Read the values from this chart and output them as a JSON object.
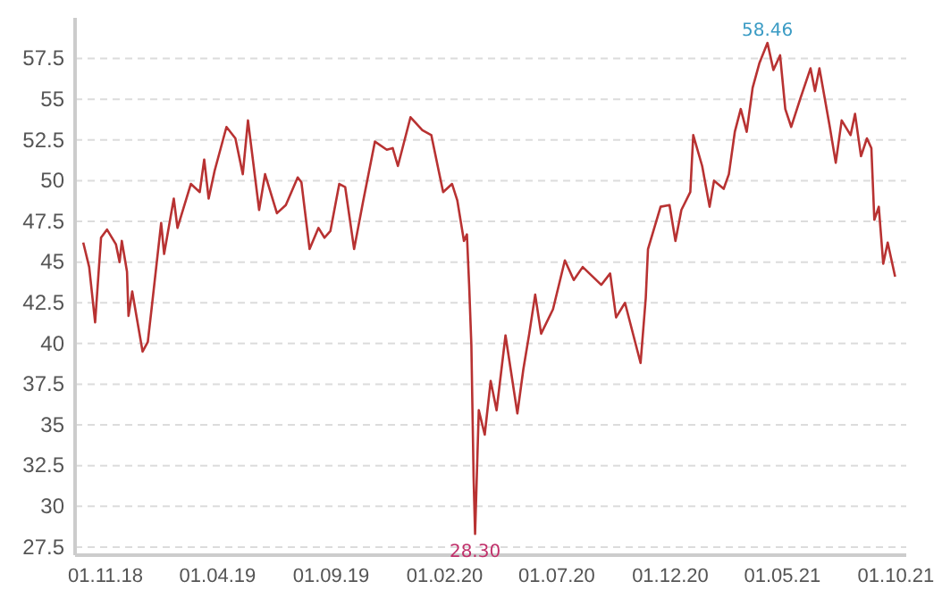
{
  "chart_data": {
    "type": "line",
    "grid": "y",
    "marker": "none",
    "line_style": "solid",
    "xlim": [
      "2018-09-21",
      "2021-10-15"
    ],
    "xticks": [
      {
        "value": "2018-11-01",
        "label": "01.11.18"
      },
      {
        "value": "2019-04-01",
        "label": "01.04.19"
      },
      {
        "value": "2019-09-01",
        "label": "01.09.19"
      },
      {
        "value": "2020-02-01",
        "label": "01.02.20"
      },
      {
        "value": "2020-07-01",
        "label": "01.07.20"
      },
      {
        "value": "2020-12-01",
        "label": "01.12.20"
      },
      {
        "value": "2021-05-01",
        "label": "01.05.21"
      },
      {
        "value": "2021-10-01",
        "label": "01.10.21"
      }
    ],
    "ylim": [
      27,
      60
    ],
    "yticks": [
      {
        "value": 27.5,
        "label": "27.5"
      },
      {
        "value": 30,
        "label": "30"
      },
      {
        "value": 32.5,
        "label": "32.5"
      },
      {
        "value": 35,
        "label": "35"
      },
      {
        "value": 37.5,
        "label": "37.5"
      },
      {
        "value": 40,
        "label": "40"
      },
      {
        "value": 42.5,
        "label": "42.5"
      },
      {
        "value": 45,
        "label": "45"
      },
      {
        "value": 47.5,
        "label": "47.5"
      },
      {
        "value": 50,
        "label": "50"
      },
      {
        "value": 52.5,
        "label": "52.5"
      },
      {
        "value": 55,
        "label": "55"
      },
      {
        "value": 57.5,
        "label": "57.5"
      }
    ],
    "annotations": [
      {
        "text": "58.46",
        "x": "2021-04-11",
        "y": 58.46
      },
      {
        "text": "28.30",
        "x": "2020-03-13",
        "y": 28.3
      }
    ],
    "x": [
      "2018-10-02",
      "2018-10-10",
      "2018-10-18",
      "2018-10-26",
      "2018-11-03",
      "2018-11-15",
      "2018-11-20",
      "2018-11-23",
      "2018-11-30",
      "2018-12-02",
      "2018-12-07",
      "2018-12-21",
      "2018-12-28",
      "2019-01-02",
      "2019-01-15",
      "2019-01-19",
      "2019-02-01",
      "2019-02-06",
      "2019-02-24",
      "2019-03-08",
      "2019-03-14",
      "2019-03-20",
      "2019-03-28",
      "2019-04-13",
      "2019-04-25",
      "2019-05-05",
      "2019-05-12",
      "2019-05-27",
      "2019-06-04",
      "2019-06-20",
      "2019-07-02",
      "2019-07-18",
      "2019-07-23",
      "2019-08-03",
      "2019-08-15",
      "2019-08-23",
      "2019-08-31",
      "2019-09-12",
      "2019-09-20",
      "2019-10-02",
      "2019-10-14",
      "2019-10-30",
      "2019-11-15",
      "2019-11-23",
      "2019-11-30",
      "2019-12-17",
      "2020-01-02",
      "2020-01-14",
      "2020-01-24",
      "2020-01-30",
      "2020-02-11",
      "2020-02-18",
      "2020-02-27",
      "2020-03-02",
      "2020-03-05",
      "2020-03-08",
      "2020-03-11",
      "2020-03-13",
      "2020-03-18",
      "2020-03-26",
      "2020-04-03",
      "2020-04-11",
      "2020-04-23",
      "2020-05-09",
      "2020-05-17",
      "2020-05-25",
      "2020-06-02",
      "2020-06-10",
      "2020-06-26",
      "2020-07-12",
      "2020-07-24",
      "2020-08-05",
      "2020-08-30",
      "2020-09-11",
      "2020-09-19",
      "2020-10-01",
      "2020-10-22",
      "2020-10-29",
      "2020-11-01",
      "2020-11-18",
      "2020-11-30",
      "2020-12-08",
      "2020-12-16",
      "2020-12-28",
      "2021-01-01",
      "2021-01-13",
      "2021-01-23",
      "2021-01-29",
      "2021-02-11",
      "2021-02-18",
      "2021-02-26",
      "2021-03-06",
      "2021-03-14",
      "2021-03-22",
      "2021-03-31",
      "2021-04-11",
      "2021-04-19",
      "2021-04-28",
      "2021-05-05",
      "2021-05-13",
      "2021-05-25",
      "2021-06-08",
      "2021-06-14",
      "2021-06-20",
      "2021-07-04",
      "2021-07-12",
      "2021-07-20",
      "2021-08-01",
      "2021-08-07",
      "2021-08-15",
      "2021-08-23",
      "2021-08-29",
      "2021-09-02",
      "2021-09-08",
      "2021-09-14",
      "2021-09-20",
      "2021-09-30"
    ],
    "series": [
      {
        "color": "#b83232",
        "values": [
          46.2,
          44.7,
          41.3,
          46.5,
          47.0,
          46.1,
          45.0,
          46.3,
          44.4,
          41.7,
          43.2,
          39.5,
          40.1,
          42.1,
          47.4,
          45.5,
          48.9,
          47.1,
          49.8,
          49.3,
          51.3,
          48.9,
          50.6,
          53.3,
          52.6,
          50.4,
          53.7,
          48.2,
          50.4,
          48.0,
          48.5,
          50.2,
          49.9,
          45.8,
          47.1,
          46.5,
          46.9,
          49.8,
          49.6,
          45.8,
          48.7,
          52.4,
          51.9,
          52.0,
          50.9,
          53.9,
          53.1,
          52.8,
          50.6,
          49.3,
          49.8,
          48.8,
          46.3,
          46.7,
          43.6,
          39.9,
          31.8,
          28.3,
          35.9,
          34.4,
          37.7,
          35.9,
          40.5,
          35.7,
          38.4,
          40.6,
          43.0,
          40.6,
          42.1,
          45.1,
          43.9,
          44.7,
          43.6,
          44.3,
          41.6,
          42.5,
          38.8,
          42.8,
          45.8,
          48.4,
          48.5,
          46.3,
          48.2,
          49.3,
          52.8,
          50.9,
          48.4,
          50.0,
          49.5,
          50.4,
          53.0,
          54.4,
          53.0,
          55.7,
          57.2,
          58.46,
          56.8,
          57.7,
          54.4,
          53.3,
          55.0,
          56.9,
          55.5,
          56.9,
          53.3,
          51.1,
          53.7,
          52.8,
          54.1,
          51.5,
          52.6,
          52.0,
          47.6,
          48.4,
          44.9,
          46.2,
          44.1
        ]
      }
    ]
  }
}
